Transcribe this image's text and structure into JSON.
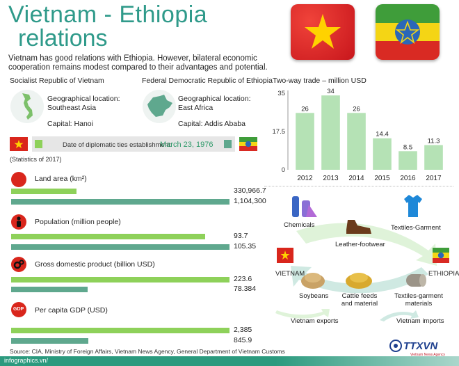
{
  "title": {
    "line1": "Vietnam - Ethiopia",
    "line2": "relations"
  },
  "intro": "Vietnam has good relations with Ethiopia. However, bilateral economic cooperation remains modest compared to their advantages and  potential.",
  "vietnam": {
    "name": "Socialist Republic of Vietnam",
    "geo_label": "Geographical location:",
    "geo_value": "Southeast Asia",
    "capital": "Capital: Hanoi"
  },
  "ethiopia": {
    "name": "Federal Democratic Republic of Ethiopia",
    "geo_label": "Geographical location:",
    "geo_value": "East Africa",
    "capital": "Capital: Addis Ababa"
  },
  "diplomatic": {
    "label": "Date of diplomatic ties establishment:",
    "date": "March 23, 1976"
  },
  "statistics_note": "(Statistics of 2017)",
  "stats": [
    {
      "label": "Land area (km²)",
      "vietnam": "330,966.7",
      "ethiopia": "1,104,300",
      "vn_num": 330966.7,
      "et_num": 1104300
    },
    {
      "label": "Population (million people)",
      "vietnam": "93.7",
      "ethiopia": "105.35",
      "vn_num": 93.7,
      "et_num": 105.35
    },
    {
      "label": "Gross domestic product (billion USD)",
      "vietnam": "223.6",
      "ethiopia": "78.384",
      "vn_num": 223.6,
      "et_num": 78.384
    },
    {
      "label": "Per capita GDP (USD)",
      "vietnam": "2,385",
      "ethiopia": "845.9",
      "vn_num": 2385,
      "et_num": 845.9
    }
  ],
  "gdp_icon_text": "GDP",
  "chart_data": {
    "type": "bar",
    "title": "Two-way trade – million USD",
    "categories": [
      "2012",
      "2013",
      "2014",
      "2015",
      "2016",
      "2017"
    ],
    "values": [
      26,
      34,
      26,
      14.4,
      8.5,
      11.3
    ],
    "value_labels": [
      "26",
      "34",
      "26",
      "14.4",
      "8.5",
      "11.3"
    ],
    "ylim": [
      0,
      35
    ],
    "yticks": [
      "0",
      "17.5",
      "35"
    ],
    "ytick_values": [
      0,
      17.5,
      35
    ],
    "grid": false
  },
  "trade": {
    "exports": [
      "Chemicals",
      "Leather-footwear",
      "Textiles-Garment"
    ],
    "imports": [
      "Soybeans",
      "Cattle feeds and material",
      "Textiles-garment materials"
    ],
    "vietnam_label": "VIETNAM",
    "ethiopia_label": "ETHIOPIA",
    "legend_exports": "Vietnam exports",
    "legend_imports": "Vietnam imports"
  },
  "source": "Source: CIA, Ministry of Foreign Affairs, Vietnam News Agency, General Department of Vietnam Customs",
  "footer": {
    "site": "infographics.vn/",
    "logo": "TTXVN",
    "logo_sub": "Vietnam News Agency"
  },
  "colors": {
    "title": "#2f9a8a",
    "vietnam_bar": "#8ed15a",
    "ethiopia_bar": "#5fa88e",
    "chart_bar": "#b5e2b5",
    "footer": "#2b9a7e"
  }
}
